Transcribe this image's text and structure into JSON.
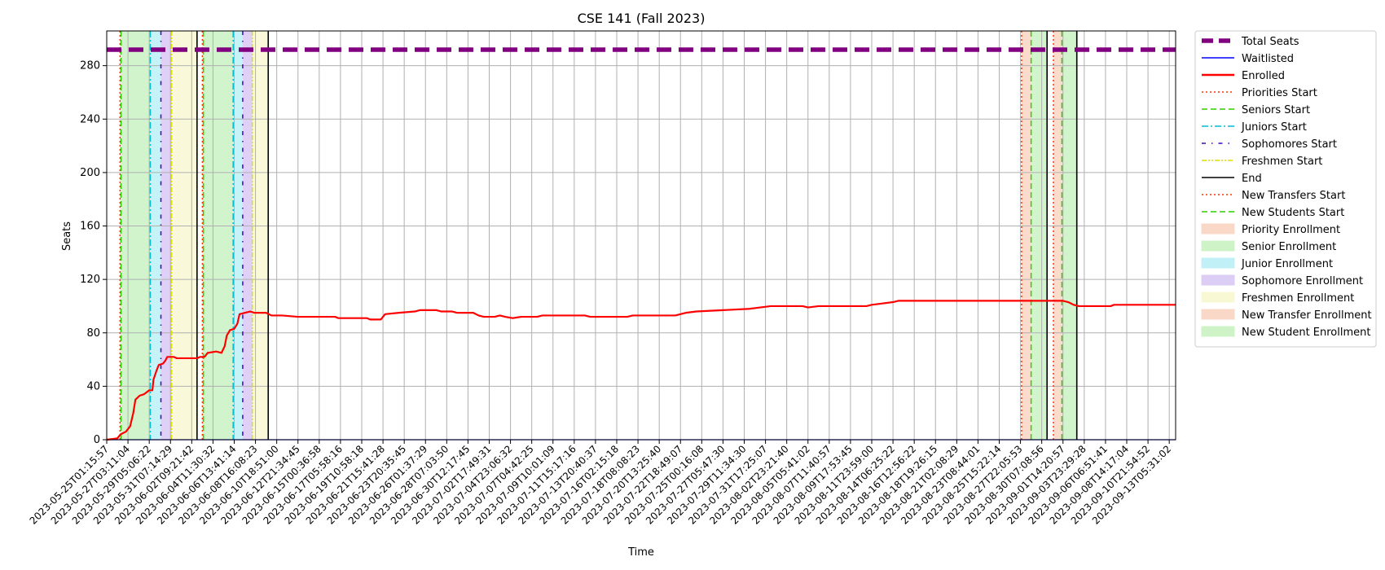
{
  "chart_data": {
    "type": "line",
    "title": "CSE 141 (Fall 2023)",
    "xlabel": "Time",
    "ylabel": "Seats",
    "ylim": [
      0,
      306
    ],
    "yticks": [
      0,
      40,
      80,
      120,
      160,
      200,
      240,
      280
    ],
    "x_ticks": [
      "2023-05-25T01:15:57",
      "2023-05-27T03:11:04",
      "2023-05-29T05:06:22",
      "2023-05-31T07:14:29",
      "2023-06-02T09:21:42",
      "2023-06-04T11:30:32",
      "2023-06-06T13:41:14",
      "2023-06-08T16:08:23",
      "2023-06-10T18:51:00",
      "2023-06-12T21:34:45",
      "2023-06-15T00:36:58",
      "2023-06-17T05:58:16",
      "2023-06-19T10:58:18",
      "2023-06-21T15:41:28",
      "2023-06-23T20:35:45",
      "2023-06-26T01:37:29",
      "2023-06-28T07:03:50",
      "2023-06-30T12:17:45",
      "2023-07-02T17:49:31",
      "2023-07-04T23:06:32",
      "2023-07-07T04:42:25",
      "2023-07-09T10:01:09",
      "2023-07-11T15:17:16",
      "2023-07-13T20:40:37",
      "2023-07-16T02:15:18",
      "2023-07-18T08:08:23",
      "2023-07-20T13:25:40",
      "2023-07-22T18:49:07",
      "2023-07-25T00:16:08",
      "2023-07-27T05:47:30",
      "2023-07-29T11:34:30",
      "2023-07-31T17:25:07",
      "2023-08-02T23:21:40",
      "2023-08-05T05:41:02",
      "2023-08-07T11:40:57",
      "2023-08-09T17:53:45",
      "2023-08-11T23:59:00",
      "2023-08-14T06:25:22",
      "2023-08-16T12:56:22",
      "2023-08-18T19:26:15",
      "2023-08-21T02:08:29",
      "2023-08-23T08:44:01",
      "2023-08-25T15:22:14",
      "2023-08-27T22:05:53",
      "2023-08-30T07:08:56",
      "2023-09-01T14:20:57",
      "2023-09-03T23:29:28",
      "2023-09-06T06:51:41",
      "2023-09-08T14:17:04",
      "2023-09-10T21:54:52",
      "2023-09-13T05:31:02"
    ],
    "x_tick_step": 2,
    "xlim_ticks": [
      0,
      100.6
    ],
    "grid": true,
    "legend_position": "outside-right",
    "series": [
      {
        "name": "Total Seats",
        "color": "#800080",
        "style": "thick-dashed",
        "points": [
          [
            0,
            292
          ],
          [
            100.6,
            292
          ]
        ]
      },
      {
        "name": "Waitlisted",
        "color": "#0000ff",
        "style": "solid",
        "points": [
          [
            0,
            0
          ],
          [
            100.6,
            0
          ]
        ]
      },
      {
        "name": "Enrolled",
        "color": "#ff0000",
        "style": "solid",
        "points": [
          [
            0,
            0
          ],
          [
            1,
            1
          ],
          [
            1.3,
            4
          ],
          [
            1.8,
            6
          ],
          [
            2.2,
            10
          ],
          [
            2.5,
            20
          ],
          [
            2.7,
            30
          ],
          [
            3.1,
            33
          ],
          [
            3.5,
            34
          ],
          [
            4.0,
            37
          ],
          [
            4.3,
            37
          ],
          [
            4.4,
            45
          ],
          [
            4.7,
            52
          ],
          [
            4.9,
            56
          ],
          [
            5.3,
            57
          ],
          [
            5.5,
            59
          ],
          [
            5.7,
            62
          ],
          [
            6.3,
            62
          ],
          [
            6.6,
            61
          ],
          [
            8.5,
            61
          ],
          [
            8.8,
            62
          ],
          [
            9.2,
            62
          ],
          [
            9.5,
            65
          ],
          [
            10.3,
            66
          ],
          [
            10.8,
            65
          ],
          [
            11.1,
            70
          ],
          [
            11.3,
            78
          ],
          [
            11.6,
            82
          ],
          [
            12.0,
            83
          ],
          [
            12.3,
            87
          ],
          [
            12.5,
            94
          ],
          [
            13.0,
            95
          ],
          [
            13.5,
            96
          ],
          [
            13.9,
            95
          ],
          [
            15.0,
            95
          ],
          [
            15.5,
            93
          ],
          [
            16.5,
            93
          ],
          [
            18.0,
            92
          ],
          [
            21.5,
            92
          ],
          [
            21.8,
            91
          ],
          [
            24.5,
            91
          ],
          [
            24.8,
            90
          ],
          [
            25.8,
            90
          ],
          [
            26.2,
            94
          ],
          [
            27.5,
            95
          ],
          [
            29.0,
            96
          ],
          [
            29.5,
            97
          ],
          [
            31.0,
            97
          ],
          [
            31.5,
            96
          ],
          [
            32.5,
            96
          ],
          [
            33.0,
            95
          ],
          [
            34.5,
            95
          ],
          [
            35.0,
            93
          ],
          [
            35.5,
            92
          ],
          [
            36.5,
            92
          ],
          [
            37.0,
            93
          ],
          [
            37.5,
            92
          ],
          [
            38.2,
            91
          ],
          [
            39.0,
            92
          ],
          [
            40.5,
            92
          ],
          [
            41.0,
            93
          ],
          [
            45.0,
            93
          ],
          [
            45.5,
            92
          ],
          [
            49.0,
            92
          ],
          [
            49.5,
            93
          ],
          [
            53.5,
            93
          ],
          [
            54.0,
            94
          ],
          [
            54.5,
            95
          ],
          [
            55.5,
            96
          ],
          [
            58.0,
            97
          ],
          [
            60.5,
            98
          ],
          [
            61.5,
            99
          ],
          [
            62.5,
            100
          ],
          [
            65.5,
            100
          ],
          [
            66.0,
            99
          ],
          [
            67.0,
            100
          ],
          [
            71.5,
            100
          ],
          [
            72.0,
            101
          ],
          [
            73.0,
            102
          ],
          [
            74.0,
            103
          ],
          [
            74.5,
            104
          ],
          [
            90.0,
            104
          ],
          [
            90.5,
            103
          ],
          [
            91.0,
            101
          ],
          [
            91.5,
            100
          ],
          [
            94.5,
            100
          ],
          [
            94.8,
            101
          ],
          [
            100.6,
            101
          ]
        ]
      }
    ],
    "markers": [
      {
        "name": "Priorities Start",
        "color": "#ff3300",
        "style": "dotted"
      },
      {
        "name": "Seniors Start",
        "color": "#33cc00",
        "style": "dashed"
      },
      {
        "name": "Juniors Start",
        "color": "#00bcd4",
        "style": "dashdot"
      },
      {
        "name": "Sophomores Start",
        "color": "#4400cc",
        "style": "loose-dashdot"
      },
      {
        "name": "Freshmen Start",
        "color": "#dddd00",
        "style": "dashdotdot"
      },
      {
        "name": "End",
        "color": "#000000",
        "style": "solid"
      },
      {
        "name": "New Transfers Start",
        "color": "#ff3300",
        "style": "dotted"
      },
      {
        "name": "New Students Start",
        "color": "#33cc00",
        "style": "dashed"
      }
    ],
    "marker_lines": [
      {
        "type": "Priorities Start",
        "x": 1.25
      },
      {
        "type": "Seniors Start",
        "x": 1.35
      },
      {
        "type": "Juniors Start",
        "x": 4.1
      },
      {
        "type": "Sophomores Start",
        "x": 5.1
      },
      {
        "type": "Freshmen Start",
        "x": 6.1
      },
      {
        "type": "End",
        "x": 8.5
      },
      {
        "type": "Priorities Start",
        "x": 9.0
      },
      {
        "type": "Seniors Start",
        "x": 9.1
      },
      {
        "type": "Juniors Start",
        "x": 11.9
      },
      {
        "type": "Sophomores Start",
        "x": 12.8
      },
      {
        "type": "Freshmen Start",
        "x": 13.7
      },
      {
        "type": "End",
        "x": 15.2
      },
      {
        "type": "New Transfers Start",
        "x": 86.1
      },
      {
        "type": "New Students Start",
        "x": 87.0
      },
      {
        "type": "End",
        "x": 88.5
      },
      {
        "type": "New Transfers Start",
        "x": 89.1
      },
      {
        "type": "New Students Start",
        "x": 89.9
      },
      {
        "type": "End",
        "x": 91.3
      }
    ],
    "regions": [
      {
        "name": "Priority Enrollment",
        "color": "#f8c8b0",
        "spans": [
          [
            1.25,
            1.35
          ],
          [
            9.0,
            9.1
          ],
          [
            86.1,
            87.0
          ],
          [
            89.1,
            89.9
          ]
        ]
      },
      {
        "name": "Senior Enrollment",
        "color": "#b8eeb0",
        "spans": [
          [
            1.35,
            4.1
          ],
          [
            9.1,
            11.9
          ]
        ]
      },
      {
        "name": "Junior Enrollment",
        "color": "#a8ecf4",
        "spans": [
          [
            4.1,
            5.1
          ],
          [
            11.9,
            12.8
          ]
        ]
      },
      {
        "name": "Sophomore Enrollment",
        "color": "#ccb8f0",
        "spans": [
          [
            5.1,
            6.1
          ],
          [
            12.8,
            13.7
          ]
        ]
      },
      {
        "name": "Freshmen Enrollment",
        "color": "#f6f6c4",
        "spans": [
          [
            6.1,
            8.5
          ],
          [
            13.7,
            15.2
          ]
        ]
      },
      {
        "name": "New Transfer Enrollment",
        "color": "#f8c8b0",
        "spans": []
      },
      {
        "name": "New Student Enrollment",
        "color": "#b8eeb0",
        "spans": [
          [
            87.0,
            88.5
          ],
          [
            89.9,
            91.3
          ]
        ]
      }
    ]
  }
}
